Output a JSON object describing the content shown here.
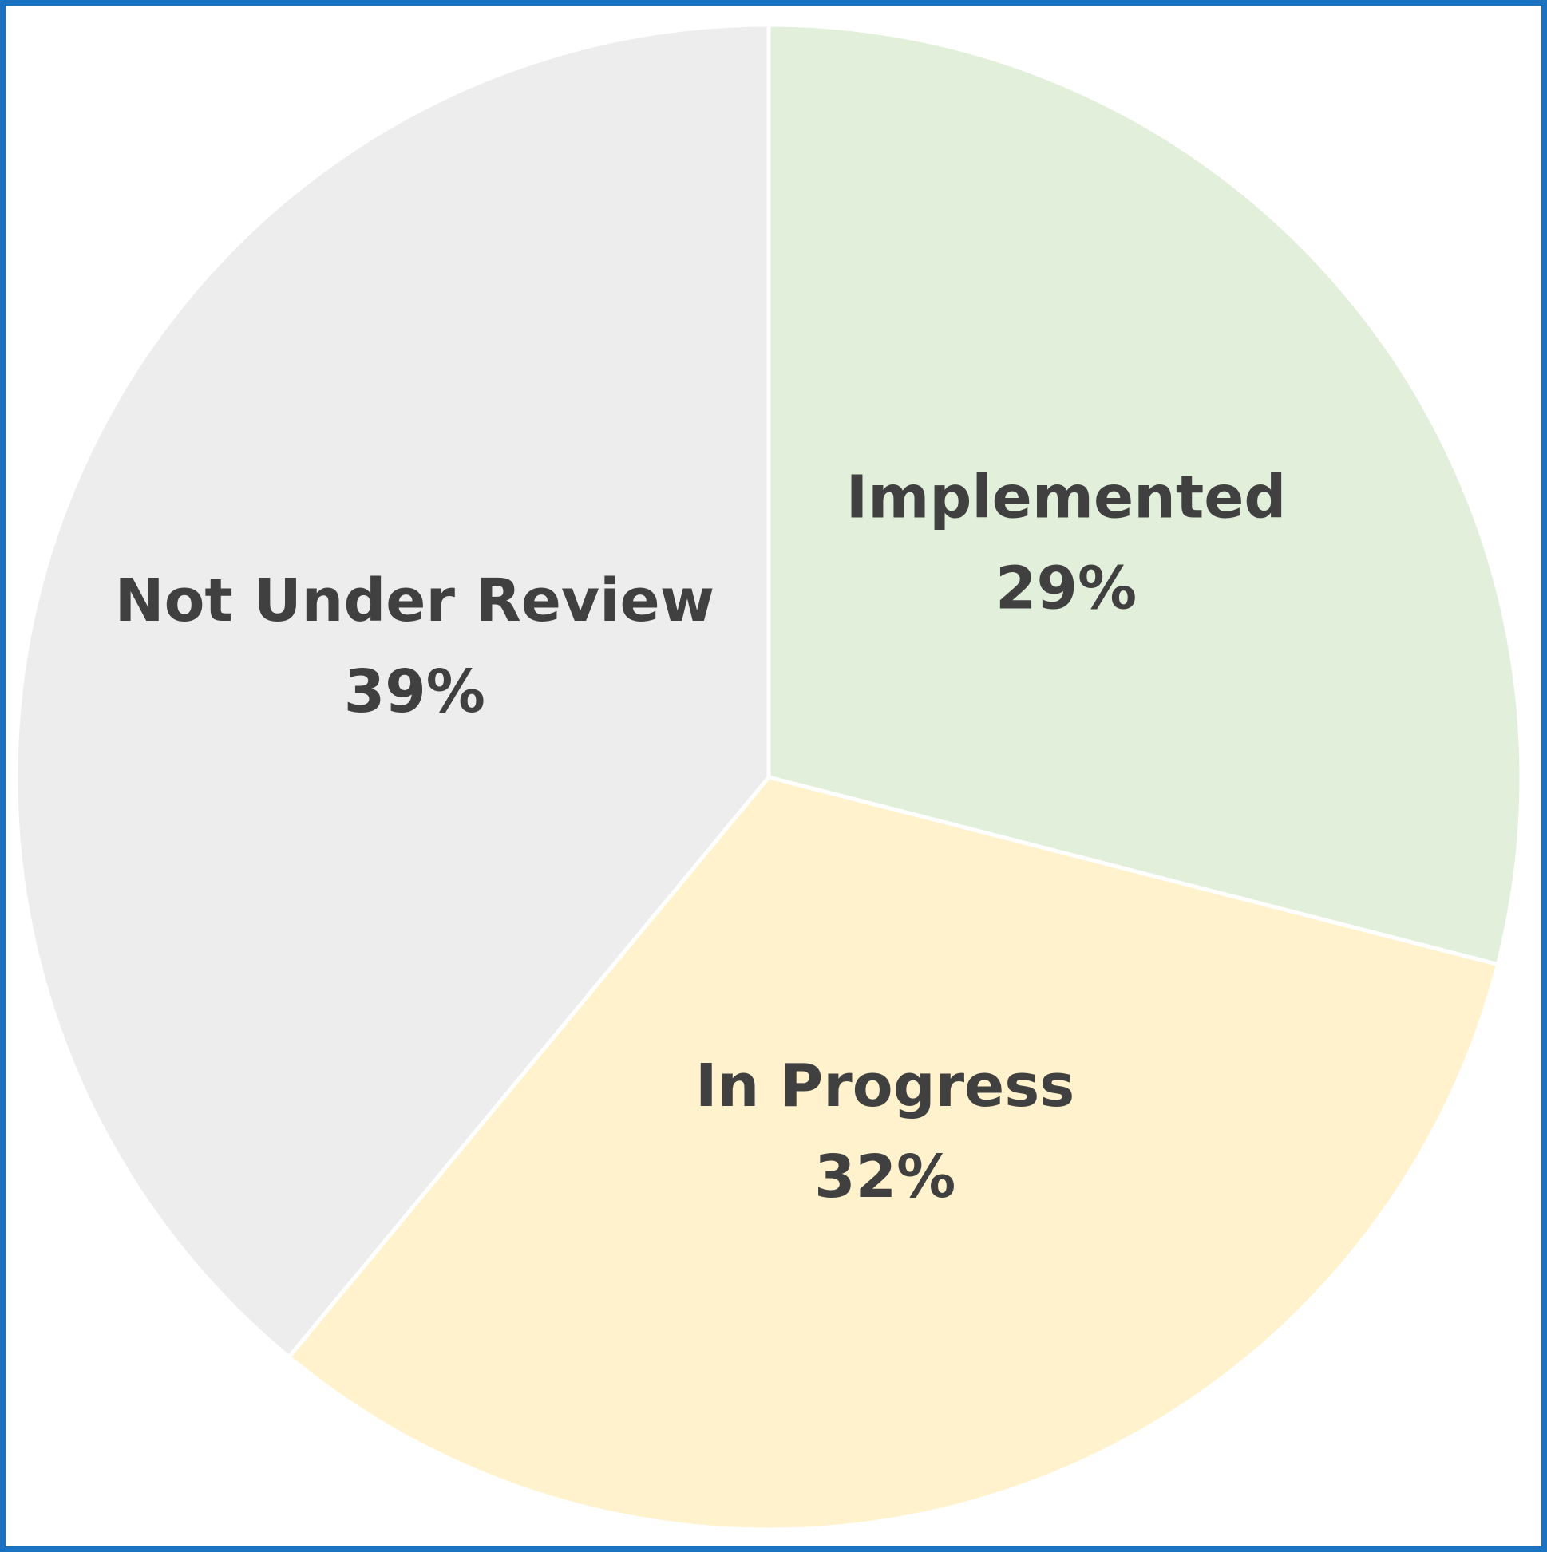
{
  "chart_data": {
    "type": "pie",
    "categories": [
      "Implemented",
      "In Progress",
      "Not Under Review"
    ],
    "values": [
      29,
      32,
      39
    ],
    "value_labels": [
      "29%",
      "32%",
      "39%"
    ],
    "colors": [
      "#e2efda",
      "#fff2cc",
      "#ededed"
    ]
  }
}
